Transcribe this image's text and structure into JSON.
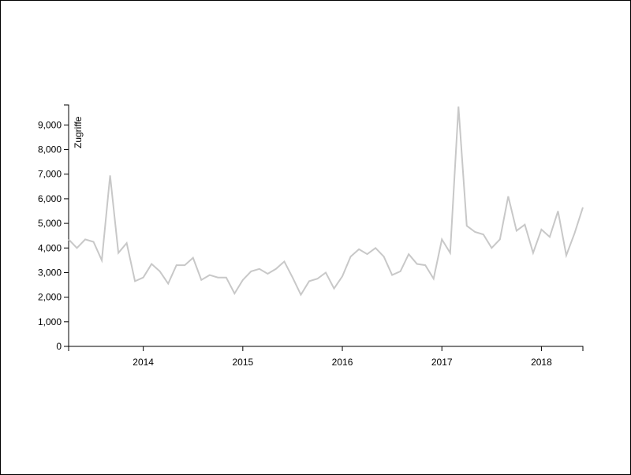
{
  "chart_data": {
    "type": "line",
    "y_label": "Zugriffe",
    "x": [
      2013.25,
      2013.3333,
      2013.4167,
      2013.5,
      2013.5833,
      2013.6667,
      2013.75,
      2013.8333,
      2013.9167,
      2014,
      2014.0833,
      2014.1667,
      2014.25,
      2014.3333,
      2014.4167,
      2014.5,
      2014.5833,
      2014.6667,
      2014.75,
      2014.8333,
      2014.9167,
      2015,
      2015.0833,
      2015.1667,
      2015.25,
      2015.3333,
      2015.4167,
      2015.5,
      2015.5833,
      2015.6667,
      2015.75,
      2015.8333,
      2015.9167,
      2016,
      2016.0833,
      2016.1667,
      2016.25,
      2016.3333,
      2016.4167,
      2016.5,
      2016.5833,
      2016.6667,
      2016.75,
      2016.8333,
      2016.9167,
      2017,
      2017.0833,
      2017.1667,
      2017.25,
      2017.3333,
      2017.4167,
      2017.5,
      2017.5833,
      2017.6667,
      2017.75,
      2017.8333,
      2017.9167,
      2018,
      2018.0833,
      2018.1667,
      2018.25,
      2018.3333,
      2018.4167
    ],
    "values": [
      4350,
      4000,
      4350,
      4250,
      3500,
      6950,
      3800,
      4200,
      2650,
      2800,
      3350,
      3050,
      2550,
      3300,
      3300,
      3600,
      2700,
      2900,
      2800,
      2800,
      2150,
      2700,
      3050,
      3150,
      2950,
      3150,
      3450,
      2800,
      2100,
      2650,
      2750,
      3000,
      2350,
      2850,
      3650,
      3950,
      3750,
      4000,
      3650,
      2900,
      3050,
      3750,
      3350,
      3300,
      2750,
      4350,
      3800,
      9750,
      4900,
      4650,
      4550,
      4000,
      4350,
      6100,
      4700,
      4950,
      3800,
      4750,
      4450,
      5500,
      3700,
      4600,
      5650
    ],
    "color": "#c8c8c8",
    "xlim": [
      2013.25,
      2018.4167
    ],
    "xticks": [
      2014,
      2015,
      2016,
      2017,
      2018
    ],
    "ylim": [
      0,
      9750
    ],
    "yticks": [
      0,
      {
        "value": 1000,
        "label": "1,000"
      },
      {
        "value": 2000,
        "label": "2,000"
      },
      {
        "value": 3000,
        "label": "3,000"
      },
      {
        "value": 4000,
        "label": "4,000"
      },
      {
        "value": 5000,
        "label": "5,000"
      },
      {
        "value": 6000,
        "label": "6,000"
      },
      {
        "value": 7000,
        "label": "7,000"
      },
      {
        "value": 8000,
        "label": "8,000"
      },
      {
        "value": 9000,
        "label": "9,000"
      }
    ]
  }
}
